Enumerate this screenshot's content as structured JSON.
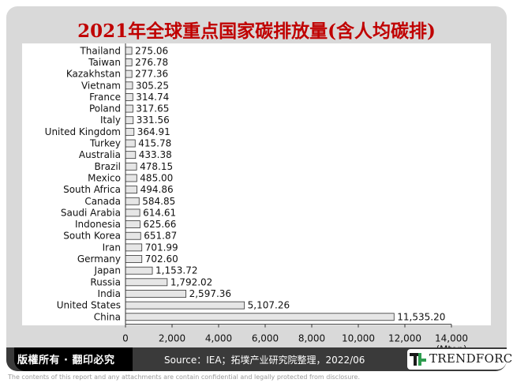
{
  "page": {
    "title": "2021年全球重点国家碳排放量(含人均碳排)",
    "copyright": "版權所有 · 翻印必究",
    "source": "Source：IEA；拓墣产业研究院整理，2022/06",
    "logo_text": "TRENDFORCE",
    "disclaimer": "The contents of this report and any attachments are contain confidential and legally protected from disclosure.",
    "colors": {
      "title": "#c00000",
      "bar_fill": "#e6e6e6",
      "bar_stroke": "#333333",
      "frame": "#d9d9d9",
      "footer": "#3a3a3a",
      "logo_green": "#2e9c4f"
    }
  },
  "chart_data": {
    "type": "bar",
    "orientation": "horizontal",
    "categories": [
      "Thailand",
      "Taiwan",
      "Kazakhstan",
      "Vietnam",
      "France",
      "Poland",
      "Italy",
      "United Kingdom",
      "Turkey",
      "Australia",
      "Brazil",
      "Mexico",
      "South Africa",
      "Canada",
      "Saudi Arabia",
      "Indonesia",
      "South Korea",
      "Iran",
      "Germany",
      "Japan",
      "Russia",
      "India",
      "United States",
      "China"
    ],
    "values": [
      275.06,
      276.78,
      277.36,
      305.25,
      314.74,
      317.65,
      331.56,
      364.91,
      415.78,
      433.38,
      478.15,
      485.0,
      494.86,
      584.85,
      614.61,
      625.66,
      651.87,
      701.99,
      702.6,
      1153.72,
      1792.02,
      2597.36,
      5107.26,
      11535.2
    ],
    "value_labels": [
      "275.06",
      "276.78",
      "277.36",
      "305.25",
      "314.74",
      "317.65",
      "331.56",
      "364.91",
      "415.78",
      "433.38",
      "478.15",
      "485.00",
      "494.86",
      "584.85",
      "614.61",
      "625.66",
      "651.87",
      "701.99",
      "702.60",
      "1,153.72",
      "1,792.02",
      "2,597.36",
      "5,107.26",
      "11,535.20"
    ],
    "xlim": [
      0,
      14000
    ],
    "xticks": [
      0,
      2000,
      4000,
      6000,
      8000,
      10000,
      12000,
      14000
    ],
    "xtick_labels": [
      "0",
      "2,000",
      "4,000",
      "6,000",
      "8,000",
      "10,000",
      "12,000",
      "14,000"
    ],
    "xlabel": "(Mton)",
    "grid": false
  }
}
